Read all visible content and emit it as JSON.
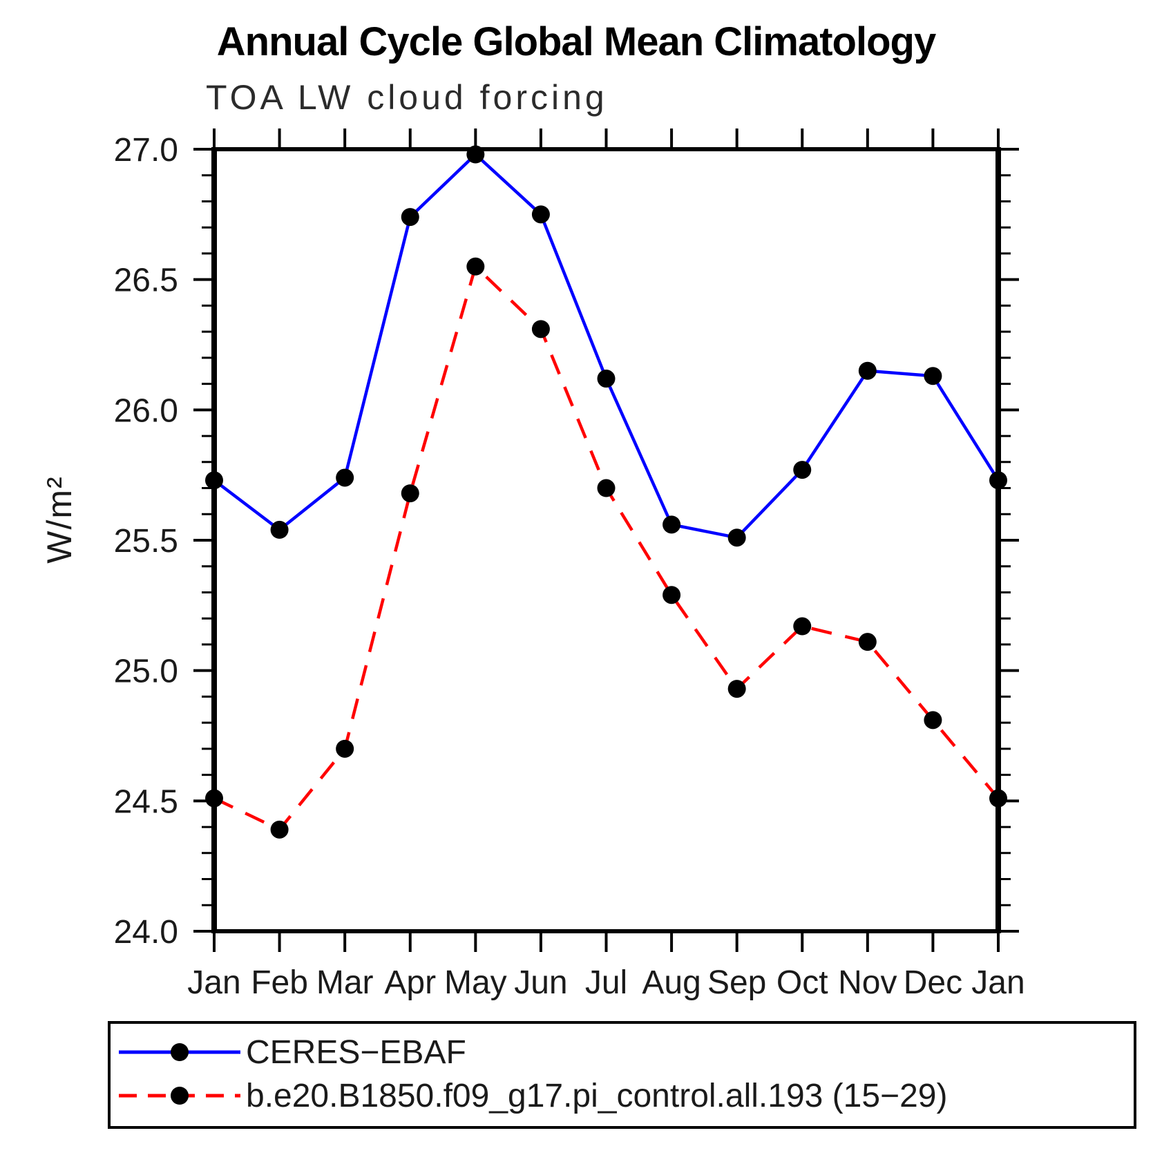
{
  "title": "Annual Cycle Global Mean Climatology",
  "subtitle": "TOA LW cloud forcing",
  "ylabel": "W/m²",
  "colors": {
    "axis": "#000000",
    "text": "#1a1a1a",
    "background": "#ffffff",
    "series_blue": "#0000ff",
    "series_red": "#ff0000",
    "marker": "#000000"
  },
  "chart_data": {
    "type": "line",
    "categories": [
      "Jan",
      "Feb",
      "Mar",
      "Apr",
      "May",
      "Jun",
      "Jul",
      "Aug",
      "Sep",
      "Oct",
      "Nov",
      "Dec",
      "Jan"
    ],
    "series": [
      {
        "name": "CERES−EBAF",
        "color": "#0000ff",
        "line_style": "solid",
        "marker": "circle",
        "marker_color": "#000000",
        "values": [
          25.73,
          25.54,
          25.74,
          26.74,
          26.98,
          26.75,
          26.12,
          25.56,
          25.51,
          25.77,
          26.15,
          26.13,
          25.73
        ]
      },
      {
        "name": "b.e20.B1850.f09_g17.pi_control.all.193 (15−29)",
        "color": "#ff0000",
        "line_style": "dashed",
        "marker": "circle",
        "marker_color": "#000000",
        "values": [
          24.51,
          24.39,
          24.7,
          25.68,
          26.55,
          26.31,
          25.7,
          25.29,
          24.93,
          25.17,
          25.11,
          24.81,
          24.51
        ]
      }
    ],
    "ylim": [
      24.0,
      27.0
    ],
    "ytick_major_step": 0.5,
    "ytick_minor_step": 0.1,
    "ytick_labels": [
      "24.0",
      "24.5",
      "25.0",
      "25.5",
      "26.0",
      "26.5",
      "27.0"
    ],
    "xlabel": "",
    "grid": false,
    "legend_position": "bottom-left"
  }
}
